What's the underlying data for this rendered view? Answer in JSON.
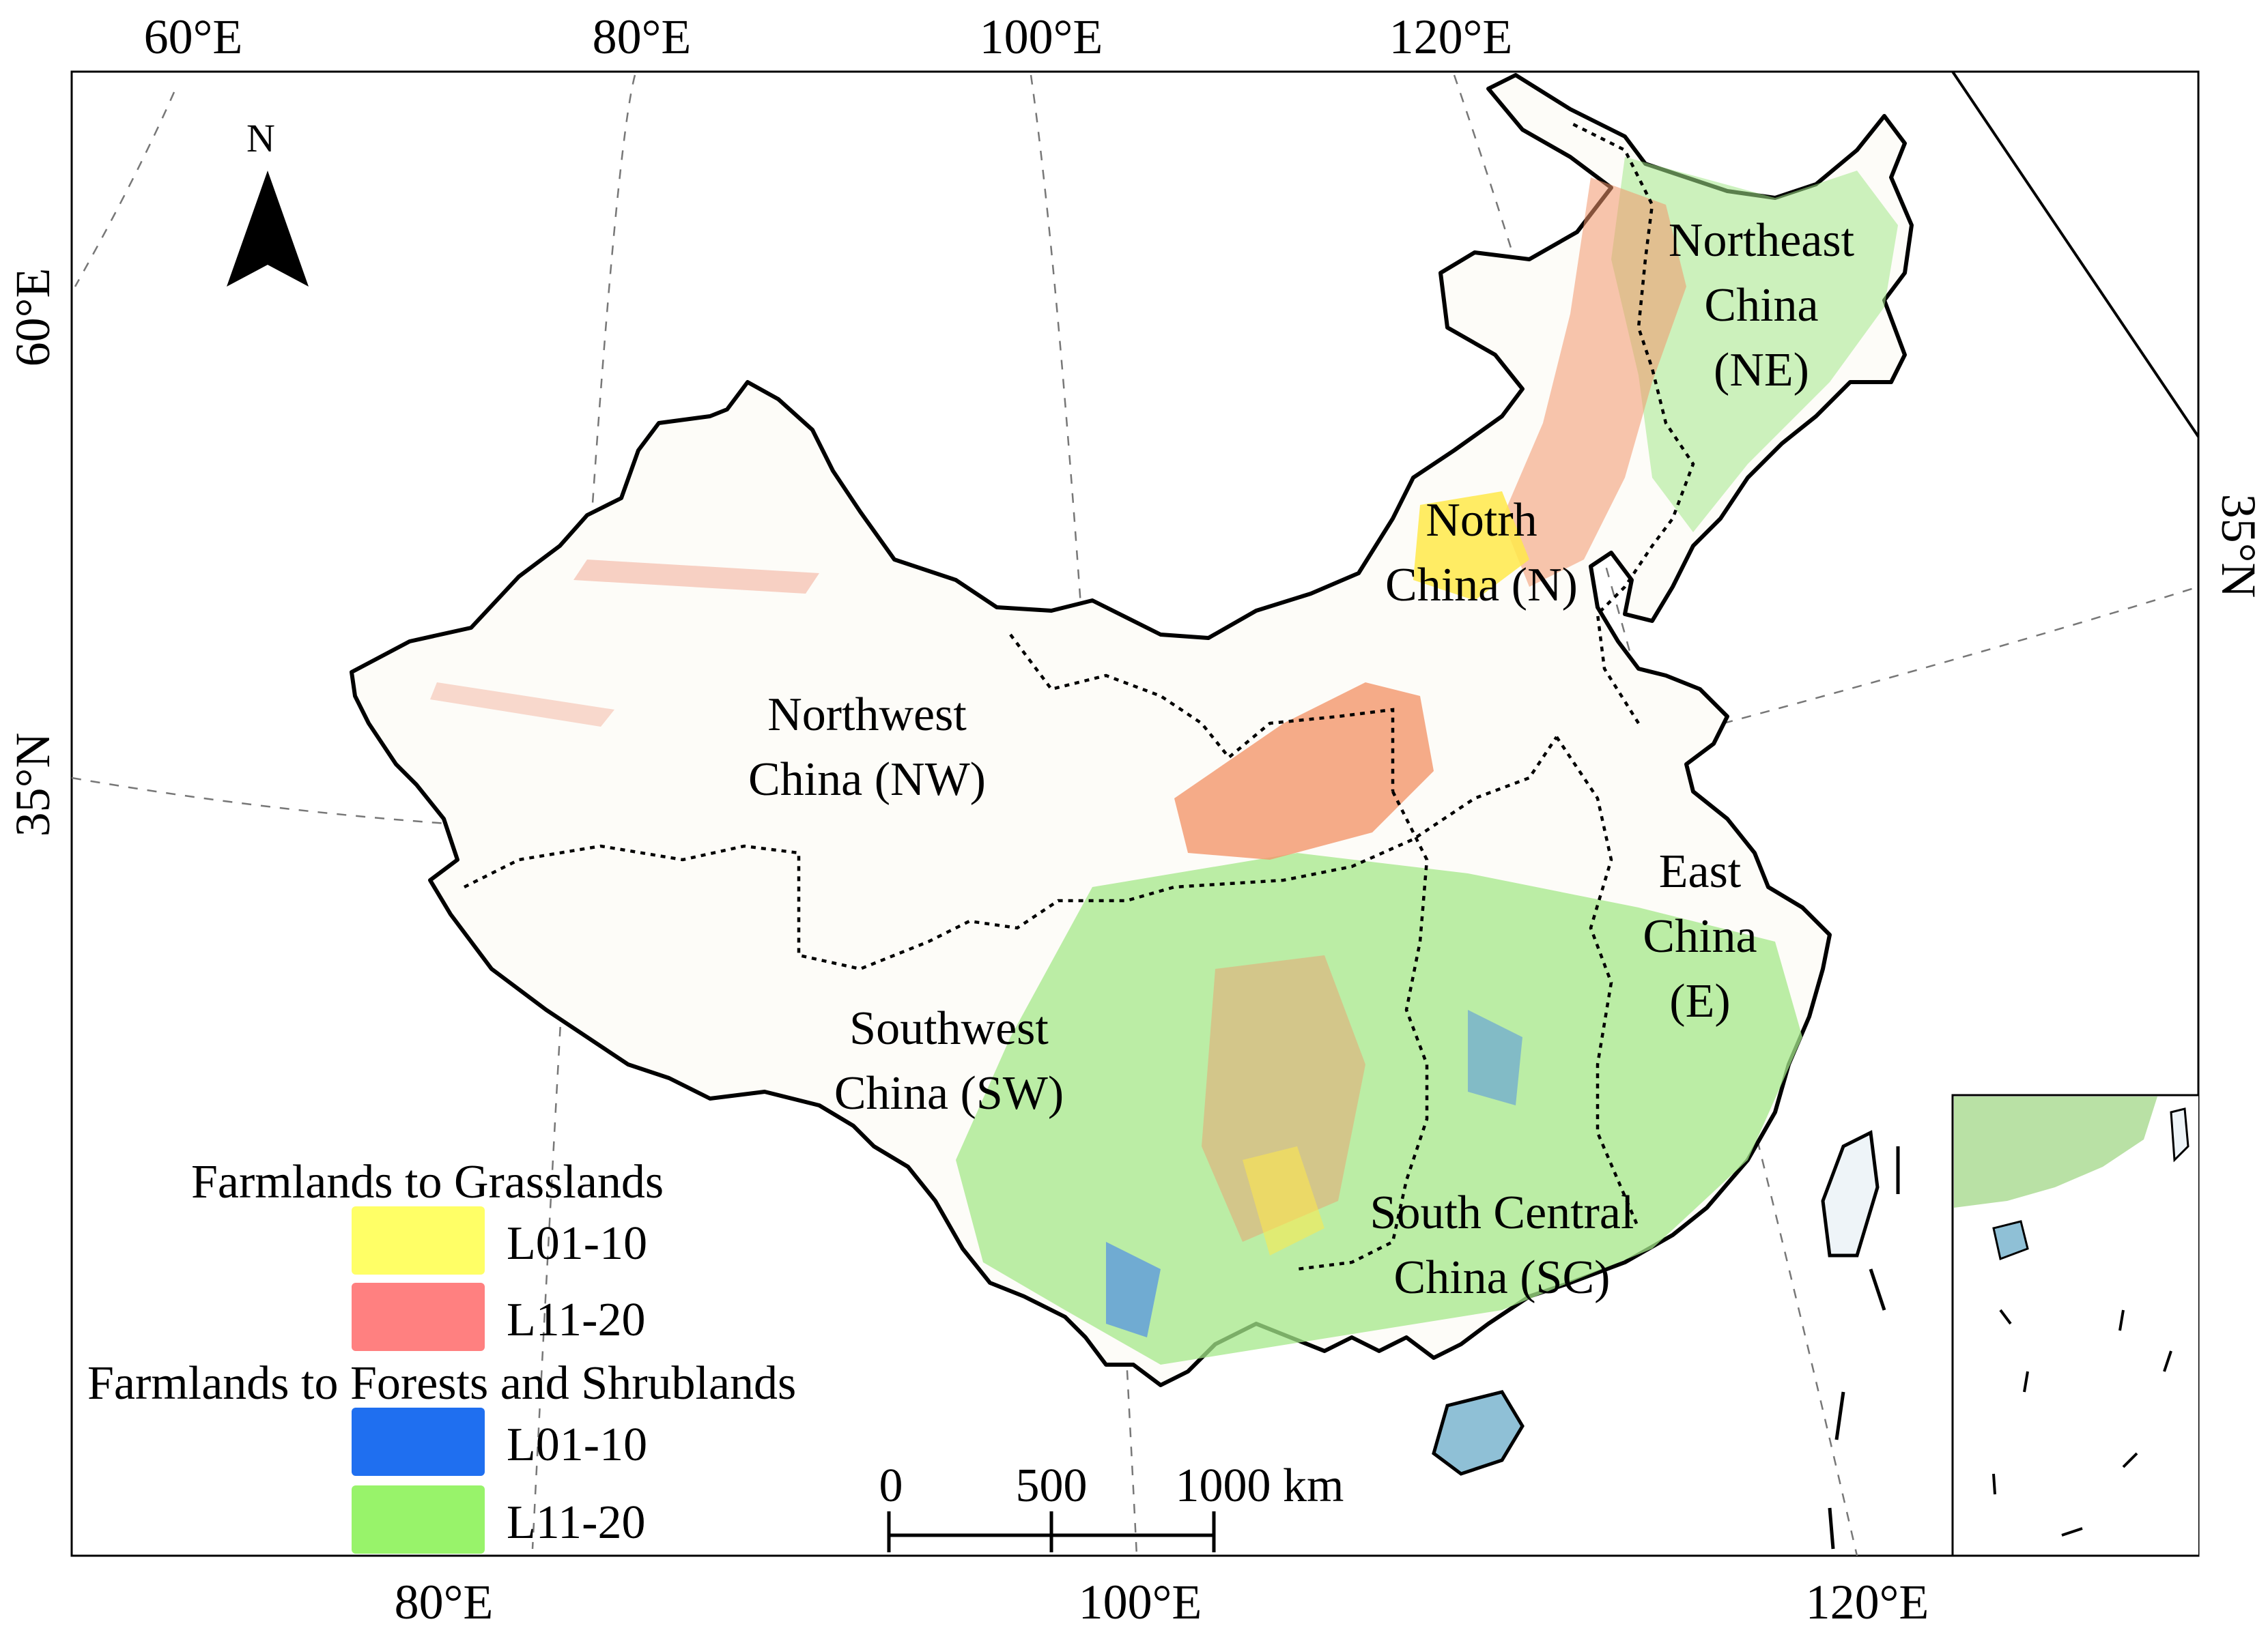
{
  "map": {
    "north_label": "N",
    "graticule_labels": {
      "top": [
        "60°E",
        "80°E",
        "100°E",
        "120°E"
      ],
      "bottom": [
        "80°E",
        "100°E",
        "120°E"
      ],
      "left": [
        "60°E",
        "35°N"
      ],
      "right": [
        "35°N"
      ]
    },
    "regions": [
      {
        "id": "ne",
        "lines": [
          "Northeast",
          "China",
          "(NE)"
        ]
      },
      {
        "id": "n",
        "lines": [
          "Notrh",
          "China (N)"
        ]
      },
      {
        "id": "nw",
        "lines": [
          "Northwest",
          "China (NW)"
        ]
      },
      {
        "id": "e",
        "lines": [
          "East",
          "China",
          "(E)"
        ]
      },
      {
        "id": "sw",
        "lines": [
          "Southwest",
          "China (SW)"
        ]
      },
      {
        "id": "sc",
        "lines": [
          "South Central",
          "China (SC)"
        ]
      }
    ]
  },
  "legend": {
    "groups": [
      {
        "title": "Farmlands to Grasslands",
        "items": [
          {
            "label": "L01-10",
            "color": "#ffff66"
          },
          {
            "label": "L11-20",
            "color": "#ff8080"
          }
        ]
      },
      {
        "title": "Farmlands to Forests and Shrublands",
        "items": [
          {
            "label": "L01-10",
            "color": "#1f6ff0"
          },
          {
            "label": "L11-20",
            "color": "#98f36a"
          }
        ]
      }
    ]
  },
  "scale_bar": {
    "ticks": [
      "0",
      "500",
      "1000 km"
    ]
  }
}
